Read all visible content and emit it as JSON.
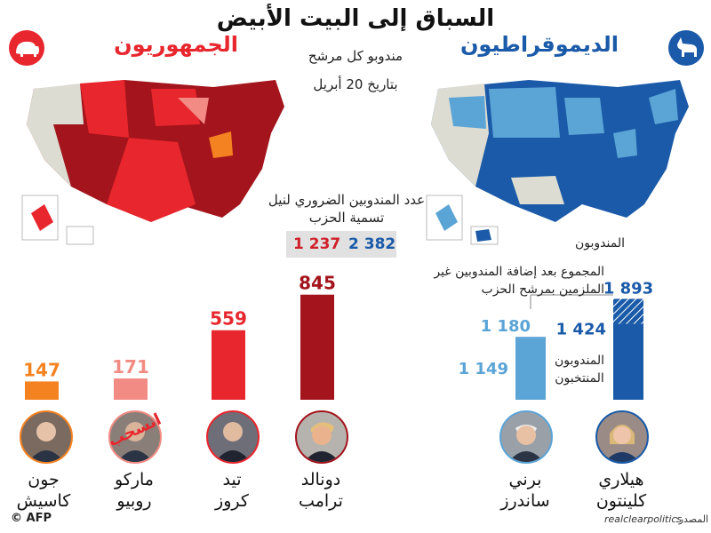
{
  "title": "السباق إلى البيت الأبيض",
  "subtitle": "مندوبو كل مرشح",
  "date": "بتاريخ 20 أبريل",
  "republicans": {
    "label": "الجمهوريون",
    "icon": "elephant-icon",
    "color": "#e8262d",
    "needed": "1 237"
  },
  "democrats": {
    "label": "الديموقراطيون",
    "icon": "donkey-icon",
    "color": "#1a5aa8",
    "needed": "2 382"
  },
  "needed_label": "عدد المندوبين الضروري لنيل تسمية الحزب",
  "dem_notes": {
    "delegates": "المندوبون",
    "total_with_super": "المجموع بعد إضافة المندوبين غير الملزمين بمرشح الحزب",
    "pledged": "المندوبون المنتخبون"
  },
  "chart_data": [
    {
      "type": "bar",
      "categories": [
        "جون كاسيش",
        "ماركو روبيو",
        "تيد كروز",
        "دونالد ترامب"
      ],
      "values": [
        147,
        171,
        559,
        845
      ],
      "value_labels": [
        "147",
        "171",
        "559",
        "845"
      ],
      "colors": [
        "#f58220",
        "#f28b84",
        "#e8262d",
        "#a3141c"
      ],
      "notes": [
        "",
        "انسحب",
        "",
        ""
      ]
    },
    {
      "type": "bar",
      "categories": [
        "بيرني ساندرز",
        "هيلاري كلينتون"
      ],
      "series": [
        {
          "name": "المندوبون المنتخبون",
          "values": [
            1149,
            1424
          ],
          "value_labels": [
            "1 149",
            "1 424"
          ]
        },
        {
          "name": "المجموع بعد إضافة المندوبين غير الملزمين بمرشح الحزب",
          "values": [
            1180,
            1893
          ],
          "value_labels": [
            "1 180",
            "1 893"
          ]
        }
      ],
      "colors": [
        "#5ba4d6",
        "#1a5aa8"
      ]
    }
  ],
  "candidates": {
    "kasich": {
      "first": "جون",
      "last": "كاسيش"
    },
    "rubio": {
      "first": "ماركو",
      "last": "روبيو",
      "stamp": "انسحب"
    },
    "cruz": {
      "first": "تيد",
      "last": "كروز"
    },
    "trump": {
      "first": "دونالد",
      "last": "ترامب"
    },
    "sanders": {
      "first": "برني",
      "last": "ساندرز"
    },
    "clinton": {
      "first": "هيلاري",
      "last": "كلينتون"
    }
  },
  "source": {
    "label": "المصدر:",
    "value": "realclearpolitics"
  },
  "credit": "© AFP"
}
